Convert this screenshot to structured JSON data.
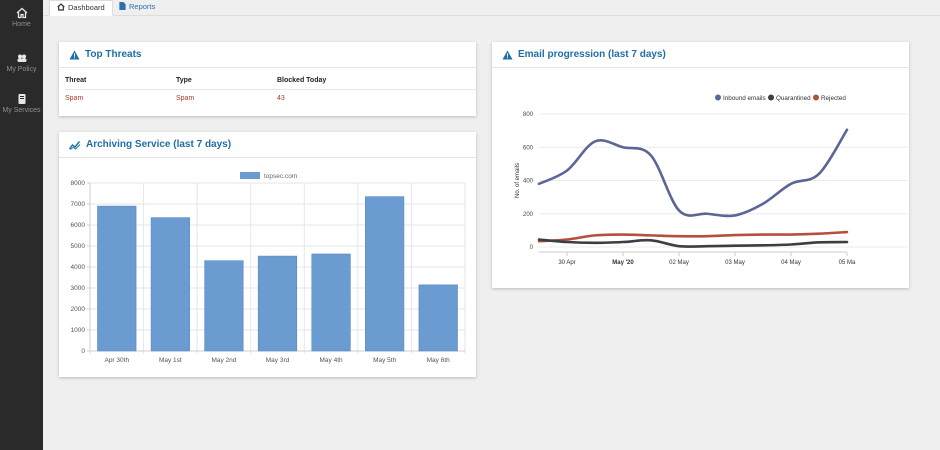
{
  "sidebar": {
    "items": [
      {
        "label": "Home",
        "icon": "home-icon"
      },
      {
        "label": "My Policy",
        "icon": "policy-icon"
      },
      {
        "label": "My Services",
        "icon": "services-icon"
      }
    ]
  },
  "tabs": [
    {
      "label": "Dashboard",
      "icon": "dashboard-icon",
      "active": true
    },
    {
      "label": "Reports",
      "icon": "document-icon",
      "active": false
    }
  ],
  "top_threats": {
    "title": "Top Threats",
    "icon": "warning-icon",
    "columns": [
      "Threat",
      "Type",
      "Blocked Today"
    ],
    "rows": [
      {
        "threat": "Spam",
        "type": "Spam",
        "blocked": "43"
      }
    ]
  },
  "archiving": {
    "title": "Archiving Service (last 7 days)",
    "icon": "trend-icon"
  },
  "email": {
    "title": "Email progression (last 7 days)",
    "icon": "warning-icon"
  },
  "colors": {
    "accent": "#1f6fa5",
    "bar": "#6a9bd1",
    "inbound": "#5a6796",
    "quarantined": "#3d3d45",
    "rejected": "#b5503a",
    "threat_text": "#b23a2a"
  },
  "chart_data": [
    {
      "type": "bar",
      "title": "",
      "categories": [
        "Apr 30th",
        "May 1st",
        "May 2nd",
        "May 3rd",
        "May 4th",
        "May 5th",
        "May 6th"
      ],
      "series": [
        {
          "name": "topsec.com",
          "values": [
            6900,
            6350,
            4300,
            4520,
            4620,
            7350,
            3150
          ]
        }
      ],
      "ylim": [
        0,
        8000
      ],
      "yticks": [
        0,
        1000,
        2000,
        3000,
        4000,
        5000,
        6000,
        7000,
        8000
      ],
      "legend": "top",
      "grid": true
    },
    {
      "type": "line",
      "title": "",
      "ylabel": "No. of emails",
      "x_tick_labels": [
        "30 Apr",
        "May '20",
        "02 May",
        "03 May",
        "04 May",
        "05 Ma"
      ],
      "x": [
        "29 Apr 12:00",
        "30 Apr",
        "30 Apr 12:00",
        "01 May",
        "01 May 12:00",
        "02 May",
        "02 May 12:00",
        "03 May",
        "03 May 12:00",
        "04 May",
        "04 May 12:00",
        "05 May"
      ],
      "series": [
        {
          "name": "Inbound emails",
          "values": [
            380,
            460,
            635,
            600,
            550,
            220,
            200,
            190,
            260,
            380,
            440,
            705
          ]
        },
        {
          "name": "Quarantined",
          "values": [
            45,
            30,
            25,
            30,
            40,
            5,
            5,
            8,
            10,
            15,
            28,
            30
          ]
        },
        {
          "name": "Rejected",
          "values": [
            35,
            45,
            70,
            75,
            70,
            65,
            65,
            72,
            75,
            75,
            80,
            90
          ]
        }
      ],
      "ylim": [
        0,
        800
      ],
      "yticks": [
        0,
        200,
        400,
        600,
        800
      ],
      "legend": "top-right",
      "grid": true
    }
  ]
}
